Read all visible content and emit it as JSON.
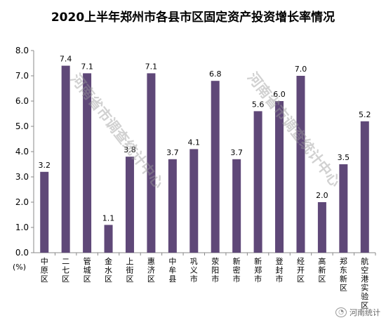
{
  "chart_data": {
    "type": "bar",
    "title": "2020上半年郑州市各县市区固定资产投资增长率情况",
    "ylabel": "(%)",
    "ylim": [
      0,
      8
    ],
    "yticks": [
      "0.0",
      "1.0",
      "2.0",
      "3.0",
      "4.0",
      "5.0",
      "6.0",
      "7.0",
      "8.0"
    ],
    "categories": [
      "中原区",
      "二七区",
      "管城区",
      "金水区",
      "上街区",
      "惠济区",
      "中牟县",
      "巩义市",
      "荥阳市",
      "新密市",
      "新郑市",
      "登封市",
      "经开区",
      "高新区",
      "郑东新区",
      "航空港实验区"
    ],
    "values": [
      3.2,
      7.4,
      7.1,
      1.1,
      3.8,
      7.1,
      3.7,
      4.1,
      6.8,
      3.7,
      5.6,
      6.0,
      7.0,
      2.0,
      3.5,
      5.2
    ],
    "value_labels": [
      "3.2",
      "7.4",
      "7.1",
      "1.1",
      "3.8",
      "7.1",
      "3.7",
      "4.1",
      "6.8",
      "3.7",
      "5.6",
      "6.0",
      "7.0",
      "2.0",
      "3.5",
      "5.2"
    ],
    "bar_color": "#5f4878",
    "grid": false,
    "legend": "none"
  },
  "watermark_text": [
    "河南省市调查统计中心",
    "河南省市调查统计中心"
  ],
  "footer": {
    "logo_text": "河南统计"
  }
}
